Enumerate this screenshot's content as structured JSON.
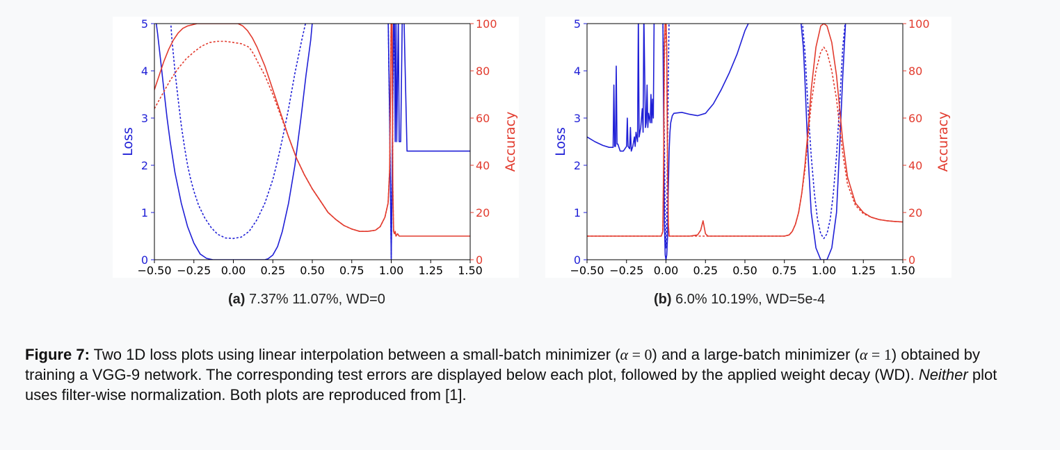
{
  "colors": {
    "loss": "#1f1fd6",
    "accuracy": "#e23b2e",
    "axis": "#000000"
  },
  "chart_data": [
    {
      "type": "line",
      "xlim": [
        -0.5,
        1.5
      ],
      "left_axis": {
        "label": "Loss",
        "ylim": [
          0,
          5
        ],
        "ticks": [
          "0",
          "1",
          "2",
          "3",
          "4",
          "5"
        ]
      },
      "right_axis": {
        "label": "Accuracy",
        "ylim": [
          0,
          100
        ],
        "ticks": [
          "0",
          "20",
          "40",
          "60",
          "80",
          "100"
        ]
      },
      "x_ticks": [
        "−0.50",
        "−0.25",
        "0.00",
        "0.25",
        "0.50",
        "0.75",
        "1.00",
        "1.25",
        "1.50"
      ],
      "series": [
        {
          "axis": "left",
          "style": "solid",
          "x": [
            -0.5,
            -0.48,
            -0.46,
            -0.44,
            -0.42,
            -0.4,
            -0.37,
            -0.33,
            -0.29,
            -0.25,
            -0.21,
            -0.17,
            -0.13,
            -0.1,
            -0.05,
            0,
            0.05,
            0.1,
            0.15,
            0.2,
            0.22,
            0.25,
            0.28,
            0.31,
            0.35,
            0.39,
            0.43,
            0.46,
            0.49,
            0.505,
            0.75,
            0.98,
            0.99,
            0.995,
            1.0,
            1.005,
            1.01,
            1.015,
            1.02,
            1.025,
            1.03,
            1.035,
            1.045,
            1.05,
            1.06,
            1.07,
            1.08,
            1.1,
            1.2,
            1.35,
            1.5
          ],
          "y": [
            5.3,
            4.8,
            4.2,
            3.6,
            3.0,
            2.5,
            1.85,
            1.2,
            0.7,
            0.35,
            0.12,
            0.03,
            0.0,
            0.0,
            0.0,
            0.0,
            0.0,
            0.0,
            0.0,
            0.0,
            0.02,
            0.1,
            0.28,
            0.6,
            1.2,
            2.0,
            3.05,
            3.9,
            4.65,
            5.2,
            5.2,
            5.2,
            3.0,
            1.5,
            0.0,
            1.5,
            3.5,
            5.2,
            5.2,
            2.5,
            5.2,
            2.5,
            5.2,
            2.5,
            2.5,
            5.2,
            5.2,
            2.3,
            2.3,
            2.3,
            2.3
          ]
        },
        {
          "axis": "left",
          "style": "dashed",
          "x": [
            -0.4,
            -0.39,
            -0.37,
            -0.35,
            -0.33,
            -0.31,
            -0.29,
            -0.27,
            -0.25,
            -0.22,
            -0.18,
            -0.14,
            -0.1,
            -0.05,
            0,
            0.05,
            0.1,
            0.15,
            0.2,
            0.25,
            0.28,
            0.31,
            0.35,
            0.39,
            0.43,
            0.46,
            0.49,
            0.505,
            0.75,
            0.98,
            0.99,
            0.995,
            1.0,
            1.005,
            1.01,
            1.02,
            1.03
          ],
          "y": [
            5.2,
            4.7,
            4.0,
            3.4,
            2.85,
            2.4,
            2.0,
            1.7,
            1.45,
            1.15,
            0.88,
            0.68,
            0.54,
            0.46,
            0.45,
            0.48,
            0.6,
            0.85,
            1.2,
            1.7,
            2.1,
            2.55,
            3.2,
            3.95,
            4.6,
            5.05,
            5.2,
            5.2,
            5.2,
            5.2,
            3.0,
            1.5,
            0.05,
            1.5,
            3.5,
            5.2,
            5.2
          ]
        },
        {
          "axis": "right",
          "style": "solid",
          "x": [
            -0.5,
            -0.47,
            -0.44,
            -0.41,
            -0.38,
            -0.35,
            -0.32,
            -0.29,
            -0.26,
            -0.23,
            -0.2,
            -0.15,
            -0.1,
            -0.05,
            0,
            0.03,
            0.06,
            0.09,
            0.12,
            0.15,
            0.2,
            0.25,
            0.3,
            0.35,
            0.4,
            0.45,
            0.5,
            0.55,
            0.6,
            0.65,
            0.7,
            0.75,
            0.8,
            0.85,
            0.9,
            0.93,
            0.96,
            0.98,
            0.99,
            0.995,
            1.0,
            1.005,
            1.01,
            1.015,
            1.02,
            1.025,
            1.03,
            1.04,
            1.05,
            1.1,
            1.5
          ],
          "y": [
            72,
            78,
            84,
            89,
            93,
            96,
            98,
            99,
            99.5,
            100,
            100,
            100,
            100,
            100,
            100,
            100,
            99,
            97,
            94,
            90,
            82,
            72,
            62,
            52,
            43,
            36,
            30,
            25,
            20,
            17,
            14.5,
            13,
            12,
            12,
            12.5,
            14,
            18,
            24,
            38,
            70,
            105,
            105,
            30,
            12,
            11,
            12,
            10,
            11,
            10,
            10,
            10
          ]
        },
        {
          "axis": "right",
          "style": "dashed",
          "x": [
            -0.5,
            -0.45,
            -0.4,
            -0.35,
            -0.3,
            -0.25,
            -0.2,
            -0.15,
            -0.1,
            -0.05,
            0,
            0.05,
            0.1,
            0.13,
            0.16,
            0.2,
            0.25,
            0.3,
            0.35,
            0.4,
            0.45,
            0.5,
            0.55,
            0.6,
            0.65,
            0.7,
            0.75,
            0.8,
            0.85,
            0.9,
            0.93,
            0.96,
            0.98,
            0.99,
            0.995,
            1.0,
            1.005,
            1.01,
            1.015,
            1.02
          ],
          "y": [
            64,
            70,
            76,
            81,
            85,
            88,
            90.5,
            92,
            92.5,
            92.5,
            92,
            91.5,
            90,
            87,
            83,
            78,
            70,
            61,
            52,
            43,
            36,
            30,
            25,
            20,
            17,
            14.5,
            13,
            12,
            12,
            12.5,
            14,
            18,
            24,
            38,
            70,
            105,
            105,
            30,
            12,
            11
          ]
        }
      ]
    },
    {
      "type": "line",
      "xlim": [
        -0.5,
        1.5
      ],
      "left_axis": {
        "label": "Loss",
        "ylim": [
          0,
          5
        ],
        "ticks": [
          "0",
          "1",
          "2",
          "3",
          "4",
          "5"
        ]
      },
      "right_axis": {
        "label": "Accuracy",
        "ylim": [
          0,
          100
        ],
        "ticks": [
          "0",
          "20",
          "40",
          "60",
          "80",
          "100"
        ]
      },
      "x_ticks": [
        "−0.50",
        "−0.25",
        "0.00",
        "0.25",
        "0.50",
        "0.75",
        "1.00",
        "1.25",
        "1.50"
      ],
      "series": [
        {
          "axis": "left",
          "style": "solid",
          "x": [
            -0.5,
            -0.45,
            -0.4,
            -0.36,
            -0.335,
            -0.33,
            -0.325,
            -0.32,
            -0.315,
            -0.31,
            -0.305,
            -0.3,
            -0.29,
            -0.27,
            -0.25,
            -0.245,
            -0.24,
            -0.23,
            -0.225,
            -0.22,
            -0.21,
            -0.2,
            -0.195,
            -0.19,
            -0.18,
            -0.175,
            -0.17,
            -0.16,
            -0.15,
            -0.145,
            -0.14,
            -0.13,
            -0.125,
            -0.12,
            -0.115,
            -0.11,
            -0.1,
            -0.095,
            -0.09,
            -0.085,
            -0.08,
            -0.075,
            -0.07,
            -0.065,
            -0.06,
            -0.05,
            -0.045,
            -0.04,
            -0.035,
            -0.03,
            -0.025,
            -0.02,
            -0.015,
            -0.01,
            -0.005,
            0,
            0.005,
            0.01,
            0.015,
            0.02,
            0.025,
            0.03,
            0.04,
            0.05,
            0.1,
            0.15,
            0.2,
            0.25,
            0.3,
            0.35,
            0.4,
            0.45,
            0.5,
            0.55,
            0.6,
            0.65,
            0.7,
            0.75,
            0.8,
            0.85,
            0.87,
            0.88,
            0.9,
            0.92,
            0.95,
            0.98,
            1.0,
            1.02,
            1.05,
            1.08,
            1.1,
            1.12,
            1.14
          ],
          "y": [
            2.6,
            2.5,
            2.42,
            2.38,
            2.38,
            3.7,
            2.4,
            2.4,
            4.1,
            2.45,
            2.45,
            2.4,
            2.3,
            2.3,
            2.4,
            3.0,
            2.4,
            2.35,
            2.8,
            2.3,
            2.4,
            2.6,
            2.4,
            2.7,
            2.5,
            5.2,
            2.6,
            2.8,
            3.2,
            2.7,
            5.2,
            2.8,
            2.9,
            3.7,
            2.8,
            3.1,
            2.9,
            3.5,
            2.9,
            3.4,
            3.0,
            5.2,
            5.2,
            5.2,
            5.2,
            5.2,
            5.2,
            5.2,
            5.2,
            5.2,
            5.2,
            5.2,
            3.0,
            0.8,
            0.1,
            0.0,
            0.1,
            0.5,
            1.5,
            2.3,
            2.7,
            2.9,
            3.05,
            3.1,
            3.12,
            3.08,
            3.05,
            3.1,
            3.3,
            3.6,
            3.95,
            4.35,
            4.85,
            5.2,
            5.2,
            5.2,
            5.2,
            5.2,
            5.2,
            5.2,
            4.5,
            3.8,
            2.2,
            1.0,
            0.25,
            0.0,
            0.0,
            0.0,
            0.25,
            1.0,
            2.4,
            3.9,
            5.2
          ]
        },
        {
          "axis": "left",
          "style": "dashed",
          "x": [
            -0.04,
            -0.02,
            -0.01,
            -0.005,
            0,
            0.005,
            0.01,
            0.02,
            0.04,
            0.86,
            0.88,
            0.9,
            0.92,
            0.94,
            0.96,
            0.98,
            1.0,
            1.02,
            1.04,
            1.06,
            1.08,
            1.1,
            1.12,
            1.14
          ],
          "y": [
            5.2,
            5.2,
            2.5,
            0.8,
            0.25,
            0.8,
            2.5,
            5.2,
            5.2,
            5.2,
            4.4,
            3.2,
            2.2,
            1.4,
            0.85,
            0.55,
            0.45,
            0.55,
            0.85,
            1.4,
            2.2,
            3.3,
            4.5,
            5.2
          ]
        },
        {
          "axis": "right",
          "style": "solid",
          "x": [
            -0.5,
            -0.1,
            -0.03,
            -0.02,
            -0.015,
            -0.01,
            -0.005,
            0,
            0.005,
            0.01,
            0.015,
            0.02,
            0.03,
            0.05,
            0.1,
            0.15,
            0.2,
            0.22,
            0.235,
            0.25,
            0.265,
            0.3,
            0.4,
            0.5,
            0.6,
            0.7,
            0.75,
            0.78,
            0.8,
            0.82,
            0.84,
            0.86,
            0.88,
            0.9,
            0.92,
            0.95,
            0.98,
            1.0,
            1.02,
            1.05,
            1.08,
            1.1,
            1.12,
            1.15,
            1.2,
            1.25,
            1.3,
            1.35,
            1.4,
            1.45,
            1.5
          ],
          "y": [
            10,
            10,
            10,
            12,
            40,
            90,
            102,
            102,
            90,
            40,
            15,
            10,
            10,
            10,
            10,
            10,
            10.5,
            12.5,
            16.5,
            11,
            10,
            10,
            10,
            10,
            10,
            10,
            10,
            10.5,
            12,
            15,
            20,
            28,
            40,
            55,
            72,
            90,
            99,
            100,
            99,
            92,
            78,
            64,
            50,
            35,
            24,
            20,
            18,
            17,
            16.5,
            16.2,
            16
          ]
        },
        {
          "axis": "right",
          "style": "dashed",
          "x": [
            -0.5,
            -0.1,
            -0.03,
            -0.02,
            -0.015,
            -0.01,
            -0.005,
            0,
            0.005,
            0.01,
            0.015,
            0.02,
            0.03,
            0.05,
            0.3,
            0.6,
            0.75,
            0.78,
            0.8,
            0.82,
            0.84,
            0.86,
            0.88,
            0.9,
            0.92,
            0.95,
            0.98,
            1.0,
            1.02,
            1.05,
            1.08,
            1.1,
            1.12,
            1.15,
            1.2,
            1.25,
            1.3,
            1.35,
            1.4,
            1.45,
            1.5
          ],
          "y": [
            10,
            10,
            10,
            12,
            38,
            85,
            97,
            97,
            85,
            38,
            15,
            10,
            10,
            10,
            10,
            10,
            10,
            10.5,
            12,
            15,
            20,
            28,
            38,
            52,
            66,
            80,
            88,
            90,
            88,
            80,
            68,
            56,
            45,
            32,
            23,
            19.5,
            18,
            17,
            16.5,
            16.2,
            16
          ]
        }
      ]
    }
  ],
  "subcaptions": [
    {
      "label": "(a)",
      "text": " 7.37% 11.07%, WD=0"
    },
    {
      "label": "(b)",
      "text": " 6.0% 10.19%, WD=5e-4"
    }
  ],
  "caption": {
    "label": "Figure 7:",
    "t1": " Two 1D loss plots using linear interpolation between a small-batch minimizer (",
    "alpha": "α",
    "eq": " = ",
    "zero": "0",
    "t2": ") and a large-batch minimizer (",
    "one": "1",
    "t3": ") obtained by training a VGG-9 network. The corresponding test errors are displayed below each plot, followed by the applied weight decay (WD). ",
    "neither": "Neither",
    "t4": " plot uses filter-wise normalization. Both plots are reproduced from [1]."
  }
}
